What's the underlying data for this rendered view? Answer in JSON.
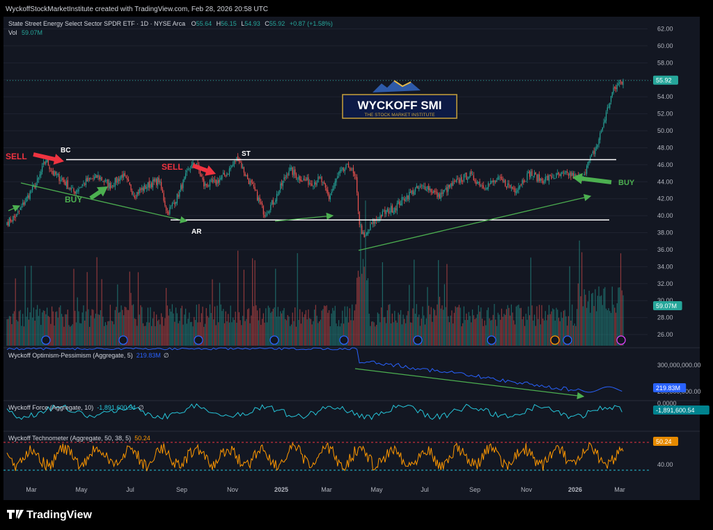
{
  "header": {
    "credit": "WyckoffStockMarketInstitute created with TradingView.com, Feb 28, 2026 20:58 UTC",
    "symbol": "State Street Energy Select Sector SPDR ETF · 1D · NYSE Arca",
    "o_label": "O",
    "o": "55.64",
    "h_label": "H",
    "h": "56.15",
    "l_label": "L",
    "l": "54.93",
    "c_label": "C",
    "c": "55.92",
    "change": "+0.87 (+1.58%)",
    "vol_label": "Vol",
    "vol": "59.07M"
  },
  "logo": {
    "title": "WYCKOFF SMI",
    "subtitle": "THE STOCK MARKET INSTITUTE"
  },
  "footer": {
    "brand": "TradingView"
  },
  "colors": {
    "bg": "#000000",
    "up": "#26a69a",
    "down": "#ef5350",
    "green_arrow": "#4caf50",
    "red_arrow": "#ef3340",
    "blue_line": "#2962ff",
    "teal_line": "#26c6da",
    "orange_line": "#ff9800"
  },
  "chart_data": [
    {
      "type": "candlestick",
      "name": "price",
      "ylim": [
        25,
        63
      ],
      "y_ticks": [
        "62.00",
        "60.00",
        "58.00",
        "56.00",
        "54.00",
        "52.00",
        "50.00",
        "48.00",
        "46.00",
        "44.00",
        "42.00",
        "40.00",
        "38.00",
        "36.00",
        "34.00",
        "32.00",
        "30.00",
        "28.00",
        "26.00"
      ],
      "x_ticks": [
        "Mar",
        "May",
        "Jul",
        "Sep",
        "Nov",
        "2025",
        "Mar",
        "May",
        "Jul",
        "Sep",
        "Nov",
        "2026",
        "Mar"
      ],
      "last_price": "55.92",
      "path_anchors": [
        [
          0,
          39.2
        ],
        [
          8,
          40
        ],
        [
          18,
          42.5
        ],
        [
          25,
          44
        ],
        [
          32,
          46.6
        ],
        [
          38,
          45
        ],
        [
          45,
          44.3
        ],
        [
          55,
          42.8
        ],
        [
          65,
          44
        ],
        [
          75,
          44.6
        ],
        [
          85,
          43.5
        ],
        [
          95,
          44.8
        ],
        [
          105,
          42.5
        ],
        [
          115,
          43.5
        ],
        [
          125,
          44.2
        ],
        [
          132,
          40.3
        ],
        [
          140,
          42.2
        ],
        [
          150,
          45.6
        ],
        [
          156,
          46.2
        ],
        [
          162,
          43.6
        ],
        [
          172,
          43.9
        ],
        [
          182,
          45.2
        ],
        [
          190,
          46.9
        ],
        [
          197,
          44.6
        ],
        [
          205,
          42.6
        ],
        [
          212,
          40.2
        ],
        [
          220,
          41.8
        ],
        [
          232,
          45.5
        ],
        [
          240,
          44.5
        ],
        [
          250,
          43.9
        ],
        [
          258,
          44.3
        ],
        [
          265,
          42.1
        ],
        [
          273,
          44.9
        ],
        [
          282,
          45.9
        ],
        [
          287,
          44.1
        ],
        [
          290,
          39.2
        ],
        [
          294,
          37.2
        ],
        [
          300,
          39
        ],
        [
          310,
          40.3
        ],
        [
          318,
          40.9
        ],
        [
          325,
          41.8
        ],
        [
          335,
          43
        ],
        [
          345,
          43.5
        ],
        [
          355,
          42.3
        ],
        [
          368,
          43.8
        ],
        [
          380,
          44.8
        ],
        [
          392,
          43.5
        ],
        [
          405,
          44.2
        ],
        [
          418,
          43.1
        ],
        [
          430,
          45
        ],
        [
          440,
          44.2
        ],
        [
          450,
          44.6
        ],
        [
          462,
          44.9
        ],
        [
          472,
          44.3
        ],
        [
          475,
          45.2
        ],
        [
          480,
          46.6
        ],
        [
          486,
          48.5
        ],
        [
          492,
          51.5
        ],
        [
          498,
          54.5
        ],
        [
          503,
          55.5
        ],
        [
          507,
          55.92
        ]
      ],
      "volume_ylim": [
        0,
        80
      ],
      "volume_label": "59.07M",
      "annotations": [
        {
          "text": "SELL",
          "color": "#ef3340"
        },
        {
          "text": "BC",
          "color": "#ffffff"
        },
        {
          "text": "SELL",
          "color": "#ef3340"
        },
        {
          "text": "ST",
          "color": "#ffffff"
        },
        {
          "text": "BUY",
          "color": "#4caf50"
        },
        {
          "text": "AR",
          "color": "#ffffff"
        },
        {
          "text": "BUY",
          "color": "#4caf50"
        }
      ],
      "resistance": 46.6,
      "support": 39.5
    },
    {
      "type": "line",
      "name": "Wyckoff Optimism-Pessimism (Aggregate, 5)",
      "value": "219.83M",
      "suffix": "∅",
      "y_ticks": [
        "300,000,000.00",
        "200,000,000.00"
      ]
    },
    {
      "type": "line",
      "name": "Wyckoff Force (Aggregate, 10)",
      "value": "-1,891,600.54",
      "suffix": "∅",
      "y_ticks": [
        "0.0000"
      ]
    },
    {
      "type": "line",
      "name": "Wyckoff Technometer (Aggregate, 50, 38, 5)",
      "value": "50.24",
      "y_ticks": [
        "40.00"
      ]
    }
  ]
}
